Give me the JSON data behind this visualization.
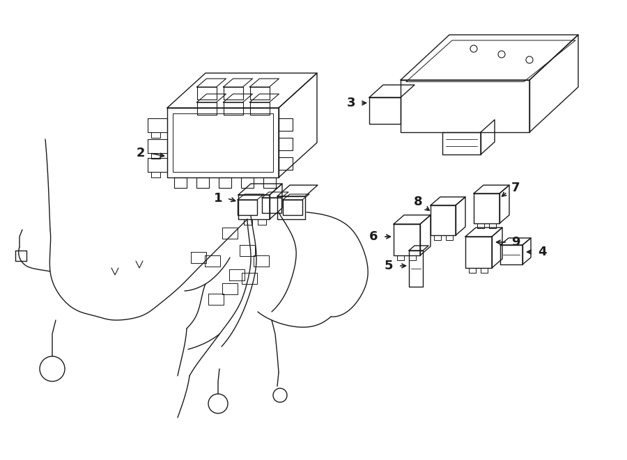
{
  "bg_color": "#ffffff",
  "line_color": "#1a1a1a",
  "line_width": 1.0,
  "fig_width": 9.0,
  "fig_height": 6.61,
  "dpi": 100
}
